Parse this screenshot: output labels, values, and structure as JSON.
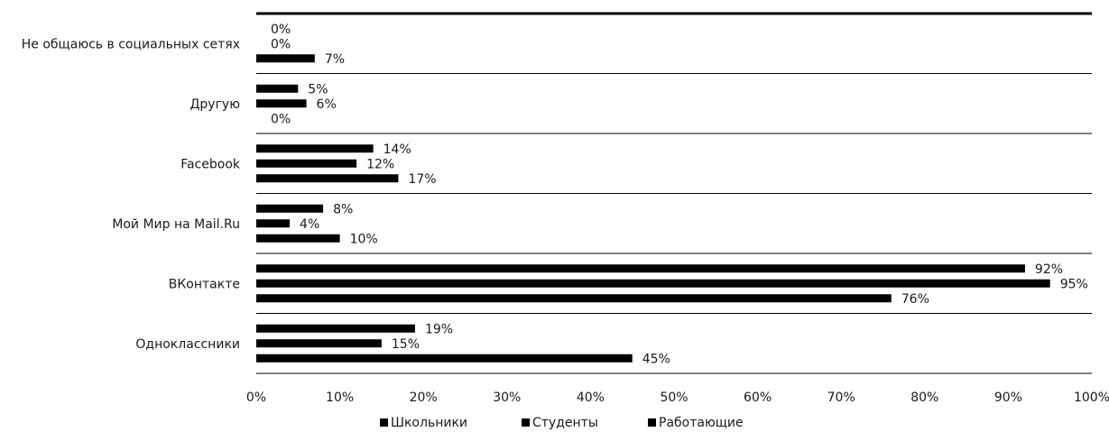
{
  "chart_data": {
    "type": "bar",
    "orientation": "horizontal",
    "categories": [
      "Не общаюсь в социальных сетях",
      "Другую",
      "Facebook",
      "Мой Мир на Mail.Ru",
      "ВКонтакте",
      "Одноклассники"
    ],
    "series": [
      {
        "name": "Школьники",
        "values": [
          0,
          5,
          14,
          8,
          92,
          19
        ]
      },
      {
        "name": "Студенты",
        "values": [
          0,
          6,
          12,
          4,
          95,
          15
        ]
      },
      {
        "name": "Работающие",
        "values": [
          7,
          0,
          17,
          10,
          76,
          45
        ]
      }
    ],
    "value_labels": [
      [
        "0%",
        "5%",
        "14%",
        "8%",
        "92%",
        "19%"
      ],
      [
        "0%",
        "6%",
        "12%",
        "4%",
        "95%",
        "15%"
      ],
      [
        "7%",
        "0%",
        "17%",
        "10%",
        "76%",
        "45%"
      ]
    ],
    "xlim": [
      0,
      100
    ],
    "x_ticks": [
      "0%",
      "10%",
      "20%",
      "30%",
      "40%",
      "50%",
      "60%",
      "70%",
      "80%",
      "90%",
      "100%"
    ],
    "title": "",
    "xlabel": "",
    "ylabel": "",
    "grid": false,
    "legend_position": "bottom",
    "colors": {
      "bars": "#000000",
      "separators": "#000000"
    }
  }
}
